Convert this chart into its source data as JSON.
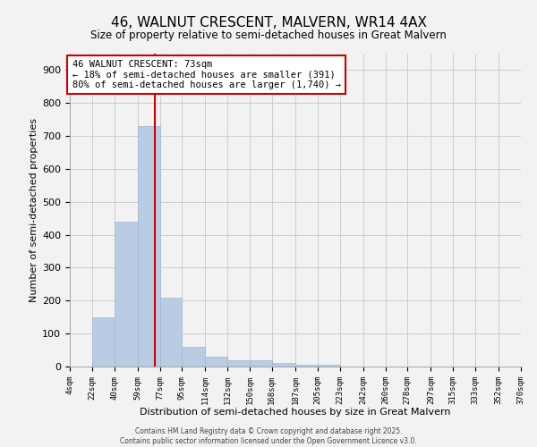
{
  "title": "46, WALNUT CRESCENT, MALVERN, WR14 4AX",
  "subtitle": "Size of property relative to semi-detached houses in Great Malvern",
  "xlabel": "Distribution of semi-detached houses by size in Great Malvern",
  "ylabel": "Number of semi-detached properties",
  "property_label": "46 WALNUT CRESCENT: 73sqm",
  "annotation_line1": "← 18% of semi-detached houses are smaller (391)",
  "annotation_line2": "80% of semi-detached houses are larger (1,740) →",
  "property_size": 73,
  "bar_left_edges": [
    4,
    22,
    40,
    59,
    77,
    95,
    114,
    132,
    150,
    168,
    187,
    205,
    223,
    242,
    260,
    278,
    297,
    315,
    333,
    352
  ],
  "bar_widths": [
    18,
    18,
    19,
    18,
    18,
    19,
    18,
    18,
    18,
    19,
    18,
    18,
    19,
    18,
    18,
    19,
    18,
    18,
    19,
    18
  ],
  "bar_heights": [
    0,
    150,
    440,
    730,
    210,
    60,
    30,
    20,
    20,
    10,
    5,
    5,
    0,
    0,
    0,
    0,
    0,
    0,
    0,
    0
  ],
  "tick_labels": [
    "4sqm",
    "22sqm",
    "40sqm",
    "59sqm",
    "77sqm",
    "95sqm",
    "114sqm",
    "132sqm",
    "150sqm",
    "168sqm",
    "187sqm",
    "205sqm",
    "223sqm",
    "242sqm",
    "260sqm",
    "278sqm",
    "297sqm",
    "315sqm",
    "333sqm",
    "352sqm",
    "370sqm"
  ],
  "tick_positions": [
    4,
    22,
    40,
    59,
    77,
    95,
    114,
    132,
    150,
    168,
    187,
    205,
    223,
    242,
    260,
    278,
    297,
    315,
    333,
    352,
    370
  ],
  "bar_color": "#b8cce4",
  "bar_edge_color": "#9eb8d8",
  "vline_color": "#cc0000",
  "vline_x": 73,
  "annotation_box_edge": "#cc0000",
  "annotation_box_fill": "white",
  "ylim": [
    0,
    950
  ],
  "yticks": [
    0,
    100,
    200,
    300,
    400,
    500,
    600,
    700,
    800,
    900
  ],
  "grid_color": "#cccccc",
  "bg_color": "#f2f2f2",
  "footer_line1": "Contains HM Land Registry data © Crown copyright and database right 2025.",
  "footer_line2": "Contains public sector information licensed under the Open Government Licence v3.0."
}
